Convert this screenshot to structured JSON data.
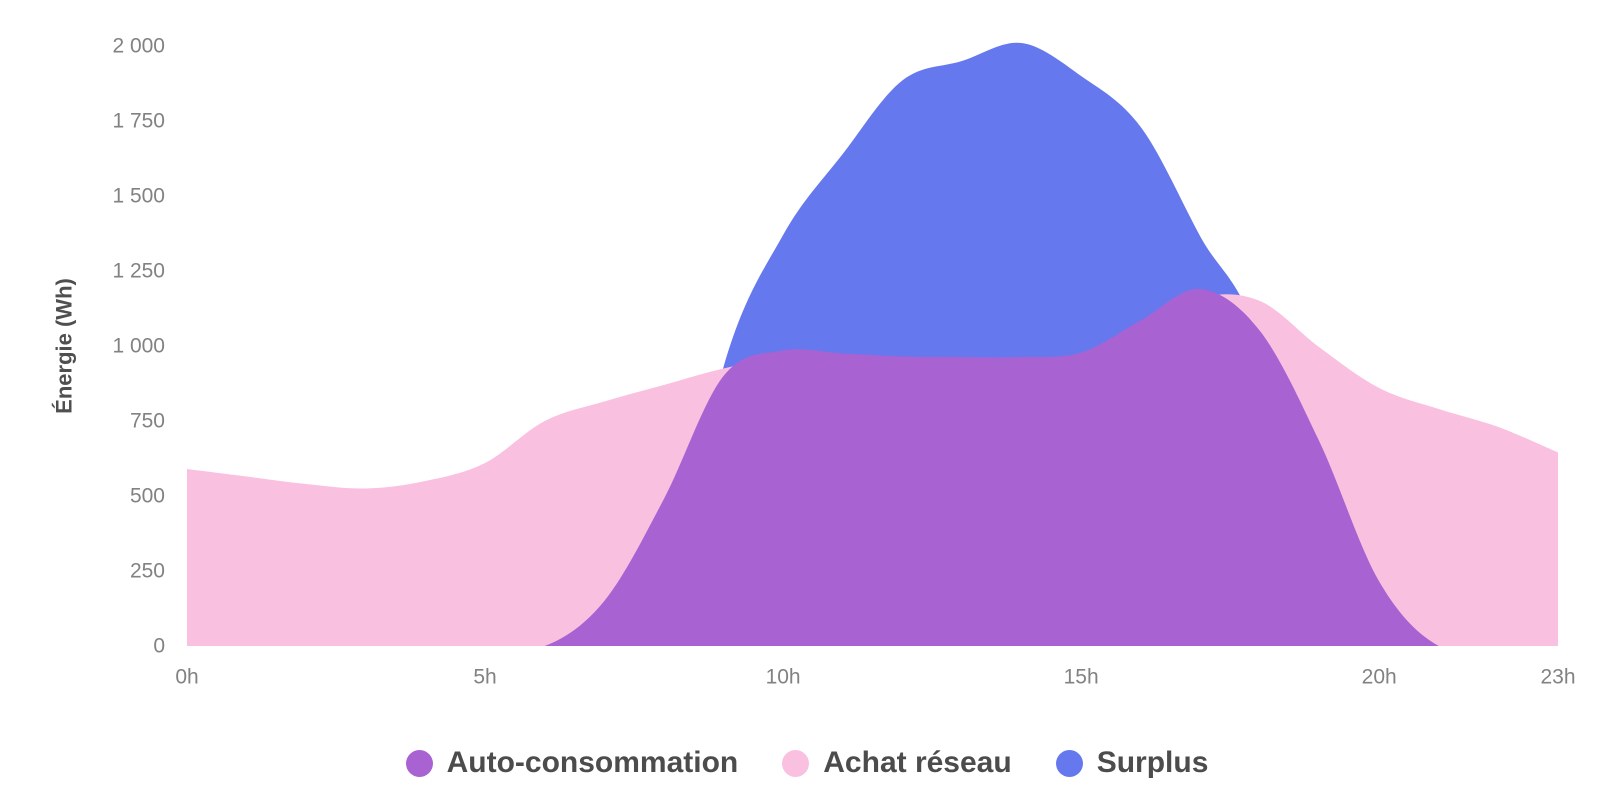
{
  "page": {
    "background": "#ffffff"
  },
  "colors": {
    "tick_text": "#828282",
    "axis_title_text": "#4f4f4f",
    "legend_text": "#4c4c4c",
    "auto_consommation": "#a862d2",
    "achat_reseau": "#fac0e0",
    "surplus": "#6678ee"
  },
  "chart_data": {
    "type": "area",
    "title": "",
    "xlabel": "",
    "ylabel": "Énergie (Wh)",
    "x": [
      0,
      1,
      2,
      3,
      4,
      5,
      6,
      7,
      8,
      9,
      10,
      11,
      12,
      13,
      14,
      15,
      16,
      17,
      18,
      19,
      20,
      21,
      22,
      23
    ],
    "x_tick_labels": [
      {
        "hour": 0,
        "label": "0h"
      },
      {
        "hour": 5,
        "label": "5h"
      },
      {
        "hour": 10,
        "label": "10h"
      },
      {
        "hour": 15,
        "label": "15h"
      },
      {
        "hour": 20,
        "label": "20h"
      },
      {
        "hour": 23,
        "label": "23h"
      }
    ],
    "y_ticks": [
      {
        "value": 0,
        "label": "0"
      },
      {
        "value": 250,
        "label": "250"
      },
      {
        "value": 500,
        "label": "500"
      },
      {
        "value": 750,
        "label": "750"
      },
      {
        "value": 1000,
        "label": "1 000"
      },
      {
        "value": 1250,
        "label": "1 250"
      },
      {
        "value": 1500,
        "label": "1 500"
      },
      {
        "value": 1750,
        "label": "1 750"
      },
      {
        "value": 2000,
        "label": "2 000"
      }
    ],
    "ylim": [
      0,
      2000
    ],
    "xlim_hours": [
      0,
      23
    ],
    "grid": false,
    "legend_position": "bottom",
    "curve": "smooth",
    "series": [
      {
        "name": "Auto-consommation",
        "color": "#a862d2",
        "values": [
          0,
          0,
          0,
          0,
          0,
          0,
          0,
          150,
          490,
          900,
          985,
          975,
          965,
          963,
          963,
          978,
          1085,
          1190,
          1050,
          680,
          215,
          0,
          0,
          0
        ]
      },
      {
        "name": "Achat réseau",
        "color": "#fac0e0",
        "values": [
          590,
          565,
          540,
          525,
          550,
          610,
          750,
          815,
          870,
          925,
          960,
          955,
          950,
          945,
          945,
          955,
          1040,
          1160,
          1150,
          995,
          860,
          790,
          730,
          645
        ]
      },
      {
        "name": "Surplus",
        "color": "#6678ee",
        "values": [
          0,
          0,
          0,
          0,
          0,
          0,
          0,
          0,
          0,
          930,
          1370,
          1640,
          1885,
          1950,
          2010,
          1900,
          1730,
          1365,
          1000,
          0,
          0,
          0,
          0,
          0
        ]
      }
    ],
    "draw_order_back_to_front": [
      "Surplus",
      "Achat réseau",
      "Auto-consommation"
    ]
  }
}
